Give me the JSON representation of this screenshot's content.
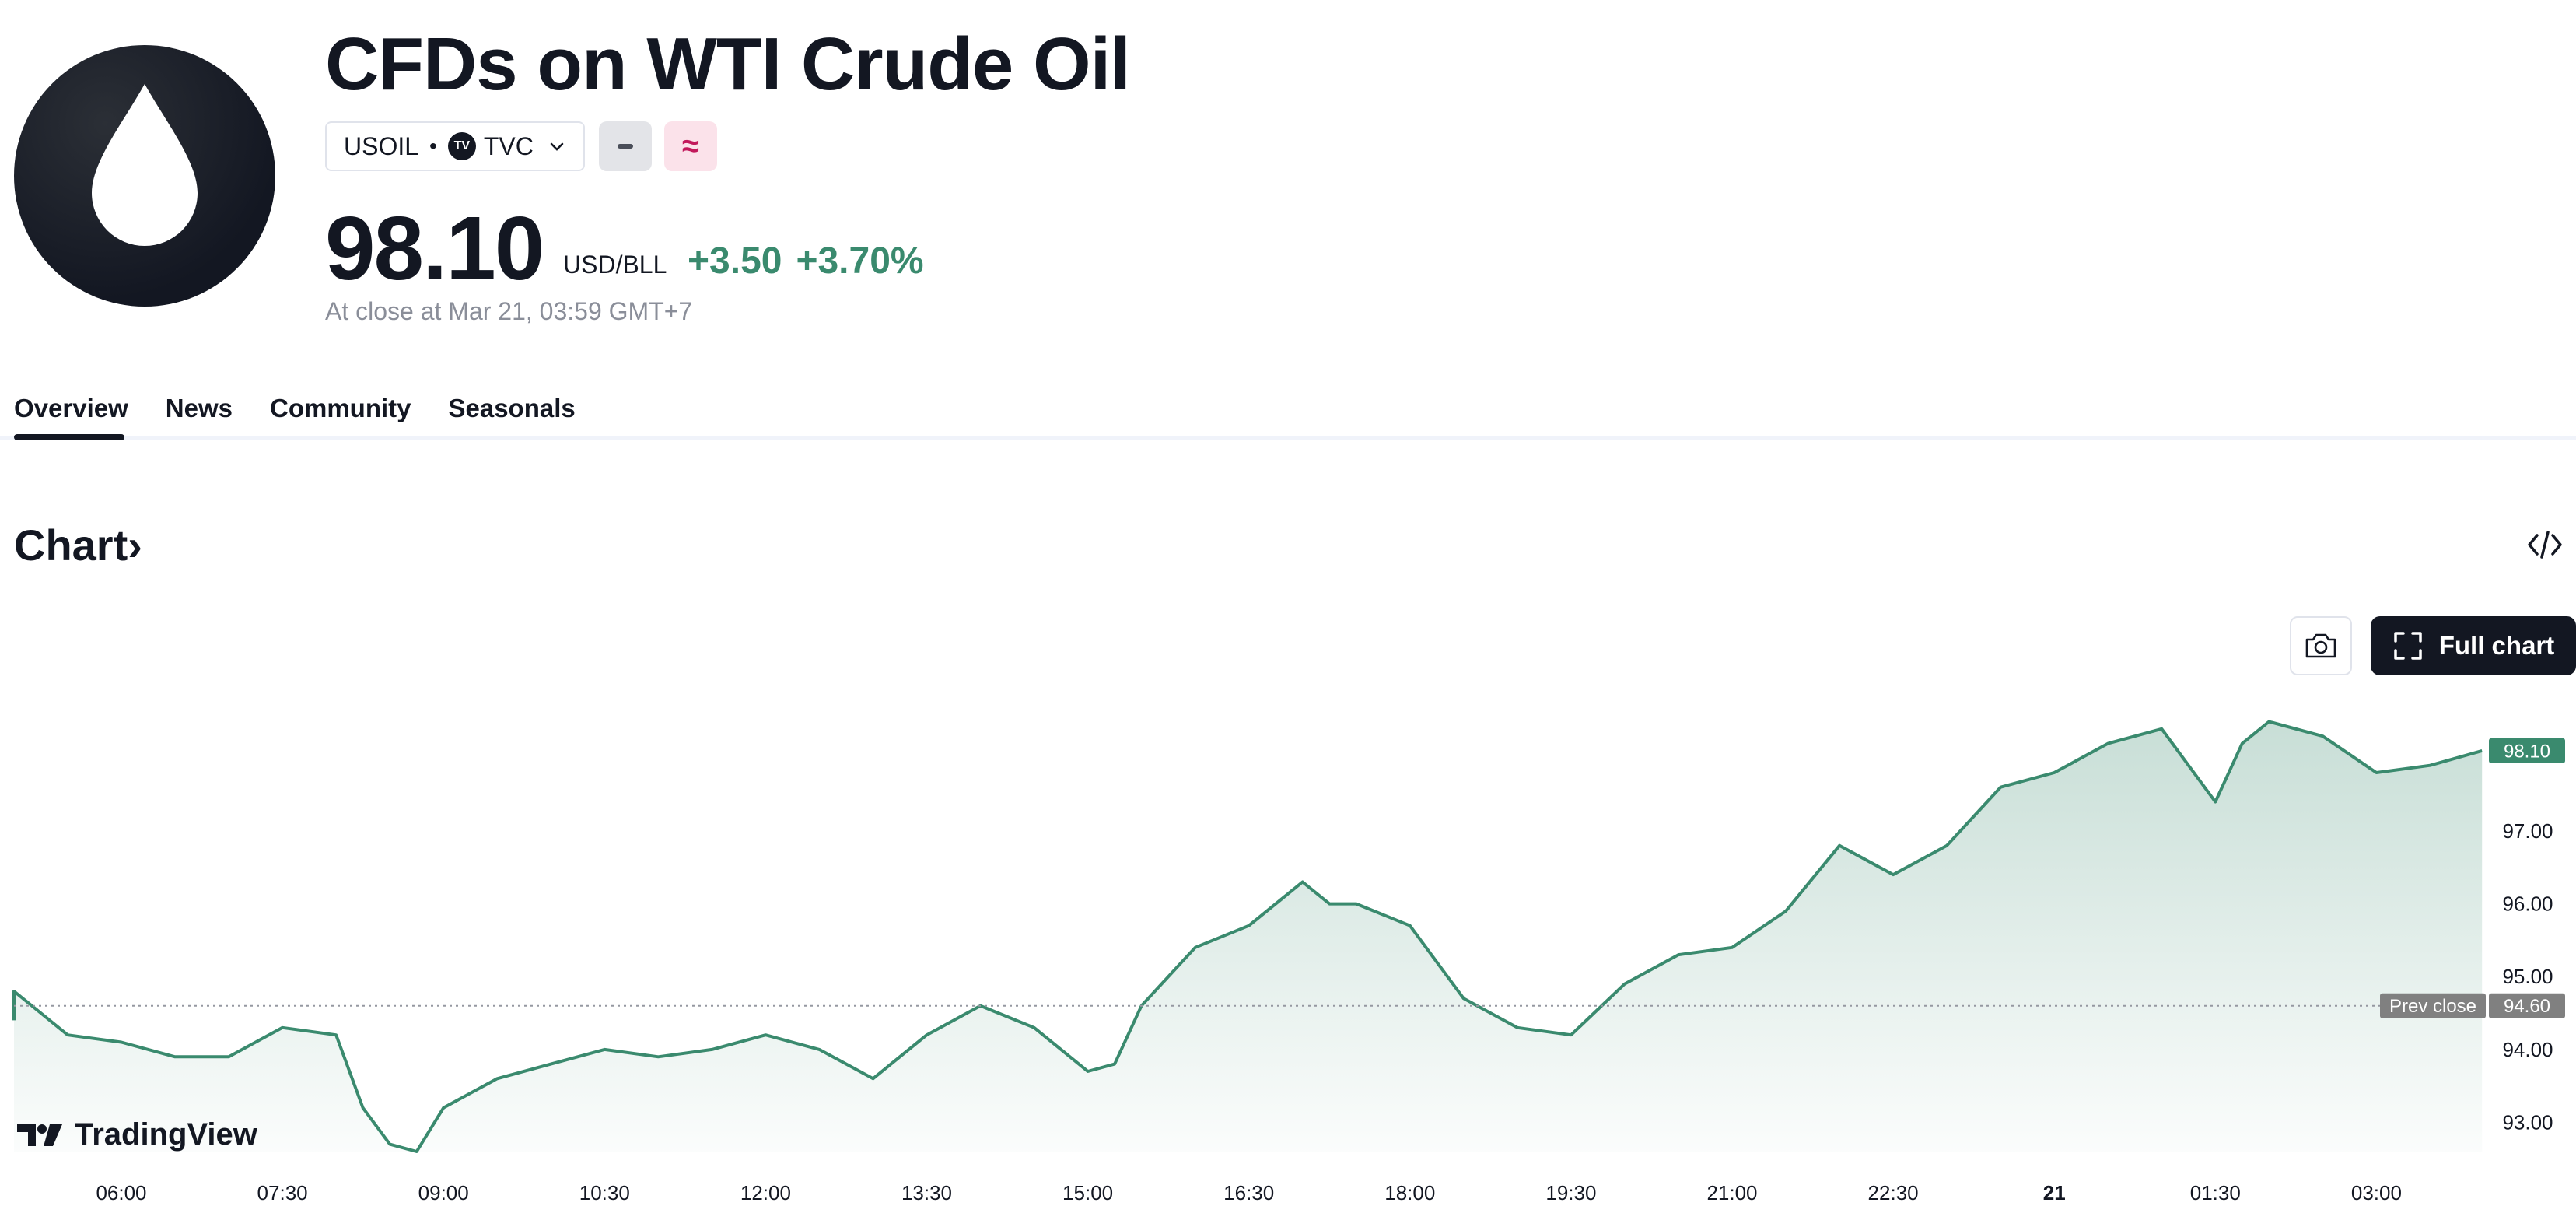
{
  "header": {
    "title": "CFDs on WTI Crude Oil",
    "symbol": "USOIL",
    "separator": "•",
    "exchange": "TVC",
    "exchange_badge": "TV",
    "price": "98.10",
    "unit": "USD/BLL",
    "change_abs": "+3.50",
    "change_pct": "+3.70%",
    "close_info": "At close at Mar 21, 03:59 GMT+7",
    "pink_badge": "≈"
  },
  "tabs": [
    {
      "label": "Overview",
      "active": true
    },
    {
      "label": "News"
    },
    {
      "label": "Community"
    },
    {
      "label": "Seasonals"
    }
  ],
  "chart_section": {
    "title": "Chart",
    "title_chevron": "›",
    "full_chart_label": "Full chart",
    "brand": "TradingView"
  },
  "colors": {
    "line": "#3a8a6e",
    "accent_green": "#3a8a6e",
    "prev_close_tag": "#808080"
  },
  "chart_data": {
    "type": "area",
    "y_ticks": [
      "93.00",
      "94.00",
      "95.00",
      "96.00",
      "97.00"
    ],
    "y_tick_values": [
      93.0,
      94.0,
      95.0,
      96.0,
      97.0
    ],
    "ylim": [
      92.6,
      98.9
    ],
    "x_ticks": [
      "06:00",
      "07:30",
      "09:00",
      "10:30",
      "12:00",
      "13:30",
      "15:00",
      "16:30",
      "18:00",
      "19:30",
      "21:00",
      "22:30",
      "21",
      "01:30",
      "03:00"
    ],
    "x_tick_bold": [
      false,
      false,
      false,
      false,
      false,
      false,
      false,
      false,
      false,
      false,
      false,
      false,
      true,
      false,
      false
    ],
    "last_price": 98.1,
    "last_price_label": "98.10",
    "prev_close": 94.6,
    "prev_close_label": "94.60",
    "prev_close_text": "Prev close",
    "grid": false,
    "series": [
      {
        "x": [
          "04:30",
          "05:00",
          "05:30",
          "06:00",
          "06:30",
          "07:00",
          "07:30",
          "08:00",
          "08:15",
          "08:30",
          "08:45",
          "09:00",
          "09:30",
          "10:00",
          "10:30",
          "11:00",
          "11:30",
          "12:00",
          "12:30",
          "13:00",
          "13:30",
          "14:00",
          "14:30",
          "15:00",
          "15:15",
          "15:30",
          "16:00",
          "16:30",
          "17:00",
          "17:15",
          "17:30",
          "18:00",
          "18:30",
          "19:00",
          "19:30",
          "20:00",
          "20:30",
          "21:00",
          "21:30",
          "22:00",
          "22:30",
          "23:00",
          "23:30",
          "00:00",
          "00:30",
          "01:00",
          "01:30",
          "01:45",
          "02:00",
          "02:30",
          "03:00",
          "03:30",
          "03:59"
        ],
        "values": [
          94.4,
          94.8,
          94.2,
          94.1,
          93.9,
          93.9,
          94.3,
          94.2,
          93.2,
          92.7,
          92.6,
          93.2,
          93.6,
          93.8,
          94.0,
          93.9,
          94.0,
          94.2,
          94.0,
          93.6,
          94.2,
          94.6,
          94.3,
          93.7,
          93.8,
          94.6,
          95.4,
          95.7,
          96.3,
          96.0,
          96.0,
          95.7,
          94.7,
          94.3,
          94.2,
          94.9,
          95.3,
          95.4,
          95.9,
          96.8,
          96.4,
          96.8,
          97.6,
          97.8,
          98.2,
          98.4,
          97.4,
          98.2,
          98.5,
          98.3,
          97.8,
          97.9,
          98.1
        ]
      }
    ]
  }
}
